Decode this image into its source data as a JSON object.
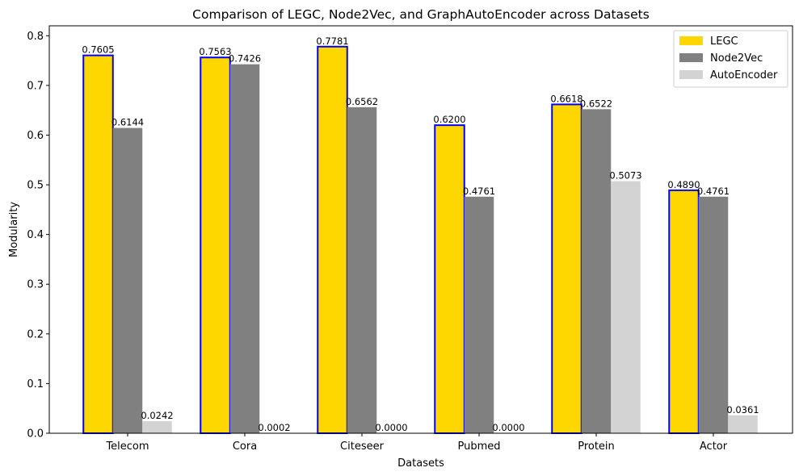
{
  "chart_data": {
    "type": "bar",
    "title": "Comparison of LEGC, Node2Vec, and GraphAutoEncoder across Datasets",
    "xlabel": "Datasets",
    "ylabel": "Modularity",
    "categories": [
      "Telecom",
      "Cora",
      "Citeseer",
      "Pubmed",
      "Protein",
      "Actor"
    ],
    "ylim": [
      0,
      0.82
    ],
    "yticks": [
      "0.0",
      "0.1",
      "0.2",
      "0.3",
      "0.4",
      "0.5",
      "0.6",
      "0.7",
      "0.8"
    ],
    "grid": false,
    "legend_position": "top-right",
    "series": [
      {
        "name": "LEGC",
        "color": "#FFD700",
        "edge_color": "#0000FF",
        "values": [
          0.7605,
          0.7563,
          0.7781,
          0.62,
          0.6618,
          0.489
        ],
        "labels": [
          "0.7605",
          "0.7563",
          "0.7781",
          "0.6200",
          "0.6618",
          "0.4890"
        ]
      },
      {
        "name": "Node2Vec",
        "color": "#808080",
        "values": [
          0.6144,
          0.7426,
          0.6562,
          0.4761,
          0.6522,
          0.4761
        ],
        "labels": [
          "0.6144",
          "0.7426",
          "0.6562",
          "0.4761",
          "0.6522",
          "0.4761"
        ]
      },
      {
        "name": "AutoEncoder",
        "color": "#D3D3D3",
        "values": [
          0.0242,
          0.0002,
          0.0,
          0.0,
          0.5073,
          0.0361
        ],
        "labels": [
          "0.0242",
          "0.0002",
          "0.0000",
          "0.0000",
          "0.5073",
          "0.0361"
        ]
      }
    ]
  }
}
